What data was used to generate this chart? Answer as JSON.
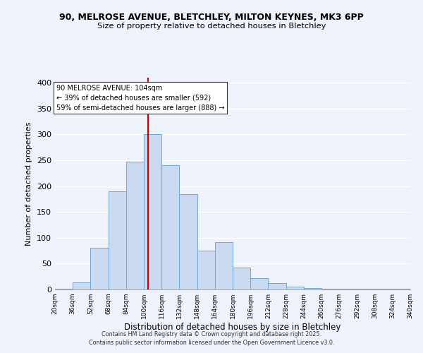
{
  "title_line1": "90, MELROSE AVENUE, BLETCHLEY, MILTON KEYNES, MK3 6PP",
  "title_line2": "Size of property relative to detached houses in Bletchley",
  "xlabel": "Distribution of detached houses by size in Bletchley",
  "ylabel": "Number of detached properties",
  "bins": [
    20,
    36,
    52,
    68,
    84,
    100,
    116,
    132,
    148,
    164,
    180,
    196,
    212,
    228,
    244,
    260,
    276,
    292,
    308,
    324,
    340
  ],
  "values": [
    2,
    14,
    80,
    190,
    248,
    300,
    240,
    185,
    75,
    92,
    43,
    22,
    12,
    6,
    3,
    2,
    1,
    1,
    1,
    2
  ],
  "bar_fill": "#c9d9f0",
  "bar_edge": "#6fa8d8",
  "vline_x": 104,
  "vline_color": "#cc0000",
  "annotation_text": "90 MELROSE AVENUE: 104sqm\n← 39% of detached houses are smaller (592)\n59% of semi-detached houses are larger (888) →",
  "annotation_box_facecolor": "white",
  "annotation_box_edgecolor": "#333333",
  "ylim": [
    0,
    410
  ],
  "yticks": [
    0,
    50,
    100,
    150,
    200,
    250,
    300,
    350,
    400
  ],
  "background_color": "#eef2fa",
  "grid_color": "#ffffff",
  "footer_line1": "Contains HM Land Registry data © Crown copyright and database right 2025.",
  "footer_line2": "Contains public sector information licensed under the Open Government Licence v3.0.",
  "tick_labels": [
    "20sqm",
    "36sqm",
    "52sqm",
    "68sqm",
    "84sqm",
    "100sqm",
    "116sqm",
    "132sqm",
    "148sqm",
    "164sqm",
    "180sqm",
    "196sqm",
    "212sqm",
    "228sqm",
    "244sqm",
    "260sqm",
    "276sqm",
    "292sqm",
    "308sqm",
    "324sqm",
    "340sqm"
  ]
}
